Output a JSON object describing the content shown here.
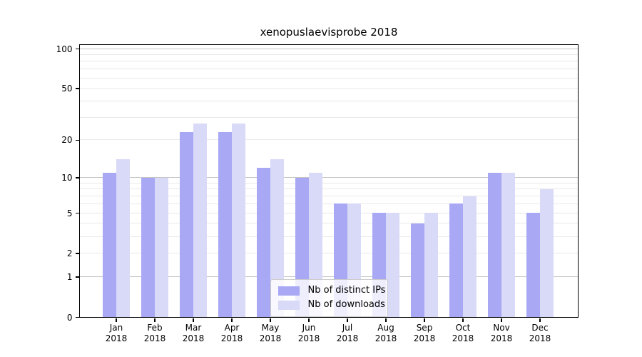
{
  "title": "xenopuslaevisprobe 2018",
  "chart_data": {
    "type": "bar",
    "categories": [
      "Jan",
      "Feb",
      "Mar",
      "Apr",
      "May",
      "Jun",
      "Jul",
      "Aug",
      "Sep",
      "Oct",
      "Nov",
      "Dec"
    ],
    "category_year": "2018",
    "series": [
      {
        "name": "Nb of distinct IPs",
        "color": "#a8a8f5",
        "values": [
          11,
          10,
          23,
          23,
          12,
          10,
          6,
          5,
          4,
          6,
          11,
          5
        ]
      },
      {
        "name": "Nb of downloads",
        "color": "#d9d9f8",
        "values": [
          14,
          10,
          27,
          27,
          14,
          11,
          6,
          5,
          5,
          7,
          11,
          8
        ]
      }
    ],
    "xlabel": "",
    "ylabel": "",
    "yscale": "log1p",
    "ylim": [
      0,
      107
    ],
    "ytick_labels": [
      "100",
      "50",
      "20",
      "10",
      "5",
      "2",
      "1",
      "0"
    ],
    "ytick_values": [
      100,
      50,
      20,
      10,
      5,
      2,
      1,
      0
    ],
    "major_grid_values": [
      1,
      10,
      100
    ],
    "minor_grid_values": [
      2,
      3,
      4,
      5,
      6,
      7,
      8,
      9,
      20,
      30,
      40,
      50,
      60,
      70,
      80,
      90
    ],
    "grid": true,
    "legend_position": "lower center",
    "colors": {
      "bar_dark": "#a8a8f5",
      "bar_light": "#d9d9f8",
      "major_grid": "#c4c4c4",
      "minor_grid": "#e9e9e9",
      "spine": "#000000",
      "legend_border": "#cccccc"
    }
  }
}
